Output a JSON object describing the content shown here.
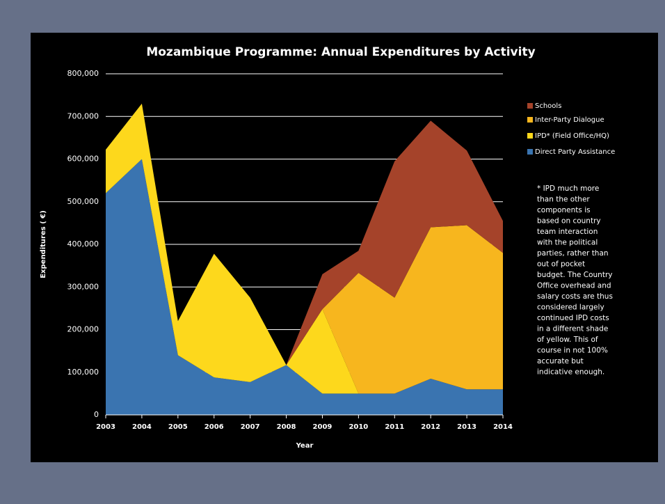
{
  "chart_data": {
    "type": "stacked_area",
    "title": "Mozambique Programme: Annual Expenditures by Activity",
    "y_label": "Expenditures ( €)",
    "x_label": "Year",
    "x": [
      2003,
      2004,
      2005,
      2006,
      2007,
      2008,
      2009,
      2010,
      2011,
      2012,
      2013,
      2014
    ],
    "series": [
      {
        "name": "Direct Party Assistance",
        "color": "#3a74b0",
        "values": [
          520000,
          600000,
          140000,
          88000,
          77000,
          117000,
          50000,
          50000,
          50000,
          85000,
          60000,
          60000
        ]
      },
      {
        "name": "IPD* (Field Office/HQ)",
        "color": "#fdd81c",
        "values": [
          102000,
          130000,
          80000,
          290000,
          198000,
          0,
          198000,
          0,
          0,
          0,
          0,
          0
        ]
      },
      {
        "name": "Inter-Party Dialogue",
        "color": "#f7b61e",
        "values": [
          0,
          0,
          0,
          0,
          0,
          0,
          0,
          283000,
          225000,
          355000,
          385000,
          320000
        ]
      },
      {
        "name": "Schools",
        "color": "#a5432a",
        "values": [
          0,
          0,
          0,
          0,
          0,
          0,
          82000,
          52000,
          320000,
          250000,
          175000,
          75000
        ]
      }
    ],
    "xlim": [
      2003,
      2014
    ],
    "ylim": [
      0,
      800000
    ],
    "yticks": [
      0,
      {
        "value": 100000,
        "label": "100,000"
      },
      {
        "value": 200000,
        "label": "200,000"
      },
      {
        "value": 300000,
        "label": "300,000"
      },
      {
        "value": 400000,
        "label": "400,000"
      },
      {
        "value": 500000,
        "label": "500,000"
      },
      {
        "value": 600000,
        "label": "600,000"
      },
      {
        "value": 700000,
        "label": "700,000"
      },
      {
        "value": 800000,
        "label": "800,000"
      }
    ],
    "grid": true,
    "legend": "right",
    "annotation": [
      "* IPD much more",
      "than the other",
      "components  is",
      "based on country",
      "team interaction",
      "with the political",
      "parties, rather than",
      "out of pocket",
      "budget. The Country",
      "Office overhead and",
      "salary costs are thus",
      "considered largely",
      "continued IPD costs",
      "in a different shade",
      "of yellow. This of",
      "course in not 100%",
      "accurate but",
      "indicative enough."
    ]
  }
}
